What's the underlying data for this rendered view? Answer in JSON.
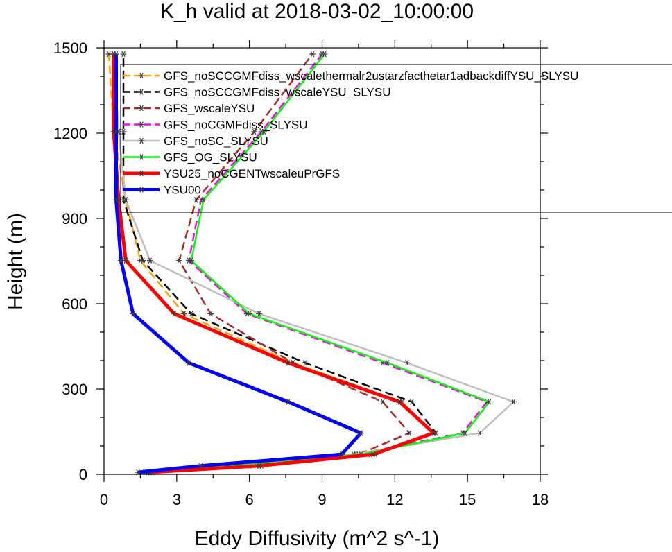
{
  "chart_data": {
    "type": "line",
    "title": "K_h valid at 2018-03-02_10:00:00",
    "xlabel": "Eddy Diffusivity (m^2 s^-1)",
    "ylabel": "Height (m)",
    "xlim": [
      0,
      18
    ],
    "ylim": [
      0,
      1500
    ],
    "xticks": [
      "0",
      "3",
      "6",
      "9",
      "12",
      "15",
      "18"
    ],
    "yticks": [
      "0",
      "300",
      "600",
      "900",
      "1200",
      "1500"
    ],
    "xtick_values": [
      0,
      3,
      6,
      9,
      12,
      15,
      18
    ],
    "ytick_values": [
      0,
      300,
      600,
      900,
      1200,
      1500
    ],
    "legend_position": "top-right",
    "marker": "asterisk",
    "y": [
      7,
      30,
      70,
      145,
      255,
      392,
      565,
      752,
      965,
      1205,
      1478
    ],
    "series": [
      {
        "name": "GFS_noSCCGMFdiss_wscalethermalr2ustarzfacthetar1adbackdiffYSU_SLYSU",
        "color": "#ffa500",
        "dash": "dash",
        "width": 2.5,
        "x": [
          2.0,
          6.5,
          11.2,
          13.6,
          12.3,
          7.8,
          3.3,
          1.5,
          0.9,
          0.4,
          0.2
        ]
      },
      {
        "name": "GFS_noSCCGMFdiss_wscaleYSU_SLYSU",
        "color": "#000000",
        "dash": "dash",
        "width": 2.5,
        "x": [
          1.9,
          6.4,
          11.0,
          13.7,
          12.7,
          8.3,
          3.6,
          1.6,
          0.8,
          0.8,
          0.8
        ]
      },
      {
        "name": "GFS_wscaleYSU",
        "color": "#a52a2a",
        "dash": "dash",
        "width": 2.5,
        "x": [
          1.8,
          6.0,
          10.5,
          12.6,
          11.5,
          7.8,
          4.4,
          3.1,
          3.8,
          6.2,
          8.6
        ]
      },
      {
        "name": "GFS_noCGMFdiss_SLYSU",
        "color": "#ff00ff",
        "dash": "dash",
        "width": 2.5,
        "x": [
          1.8,
          5.1,
          10.4,
          14.8,
          15.8,
          11.5,
          5.9,
          3.5,
          4.0,
          6.5,
          9.0
        ]
      },
      {
        "name": "GFS_noSC_SLYSU",
        "color": "#bebebe",
        "dash": "solid",
        "width": 2.5,
        "x": [
          1.7,
          5.0,
          10.3,
          15.5,
          16.9,
          12.5,
          6.4,
          1.9,
          0.9,
          0.6,
          0.4
        ]
      },
      {
        "name": "GFS_OG_SLYSU",
        "color": "#00ff00",
        "dash": "solid",
        "width": 2.5,
        "x": [
          1.8,
          5.1,
          10.6,
          14.9,
          15.9,
          11.7,
          6.0,
          3.6,
          4.1,
          6.6,
          9.1
        ]
      },
      {
        "name": "YSU25_noCGENTwscaleuPrGFS",
        "color": "#ff0000",
        "dash": "solid",
        "width": 5,
        "x": [
          1.9,
          6.4,
          11.1,
          13.6,
          12.2,
          7.6,
          2.9,
          0.9,
          0.6,
          0.4,
          0.4
        ]
      },
      {
        "name": "YSU00",
        "color": "#0000ff",
        "dash": "solid",
        "width": 5,
        "x": [
          1.4,
          4.0,
          9.8,
          10.6,
          7.6,
          3.5,
          1.2,
          0.7,
          0.5,
          0.5,
          0.5
        ]
      }
    ]
  }
}
